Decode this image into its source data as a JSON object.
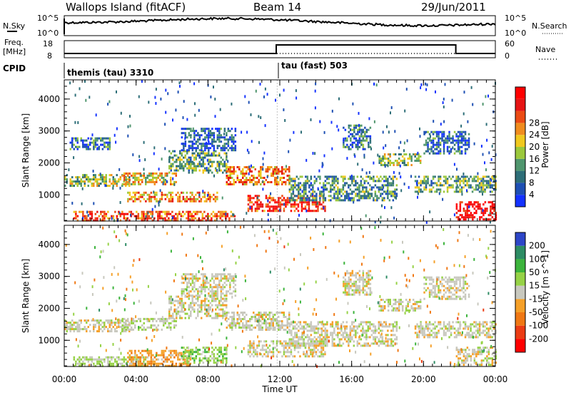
{
  "header": {
    "station": "Wallops Island (fitACF)",
    "beam": "Beam 14",
    "date": "29/Jun/2011"
  },
  "status_panels": {
    "nsky_label": "N.Sky",
    "nsky_ticks": [
      "10^5",
      "10^0"
    ],
    "nsearch_label": "N.Search",
    "nsearch_ticks": [
      "10^5",
      "10^0"
    ],
    "freq_label_line1": "Freq.",
    "freq_label_line2": "[MHz]",
    "freq_ticks": [
      "18",
      "8"
    ],
    "nave_label": "Nave",
    "nave_ticks": [
      "60",
      "0"
    ],
    "cpid_label": "CPID",
    "cpid_segments": [
      {
        "start_hour": 0,
        "end_hour": 11.8,
        "label": "themis (tau) 3310"
      },
      {
        "start_hour": 11.8,
        "end_hour": 24,
        "label": "tau (fast) 503"
      }
    ],
    "freq_values_mhz": [
      {
        "start_hour": 0,
        "end_hour": 11.8,
        "value": 10.5
      },
      {
        "start_hour": 11.8,
        "end_hour": 21.8,
        "value": 15.5
      },
      {
        "start_hour": 21.8,
        "end_hour": 24,
        "value": 10.5
      }
    ]
  },
  "chart_data": [
    {
      "type": "heatmap",
      "name": "power",
      "ylabel": "Slant Range [km]",
      "yticks": [
        "1000",
        "2000",
        "3000",
        "4000"
      ],
      "ylim": [
        180,
        4600
      ],
      "colorbar_label": "Power [dB]",
      "colorbar_ticks": [
        "4",
        "8",
        "12",
        "16",
        "20",
        "24",
        "28"
      ],
      "colorbar_colors": [
        "#1432ff",
        "#1e50b4",
        "#2d6e78",
        "#50966e",
        "#9bc83c",
        "#f0c81e",
        "#f08c1e",
        "#eb4b14",
        "#e61414",
        "#ff0000"
      ],
      "clim": [
        0,
        32
      ],
      "regions": [
        {
          "t0": 0.0,
          "t1": 3.6,
          "r0": 1250,
          "r1": 1650,
          "value": 14
        },
        {
          "t0": 3.2,
          "t1": 6.2,
          "r0": 1300,
          "r1": 1700,
          "value": 18
        },
        {
          "t0": 5.8,
          "t1": 9.0,
          "r0": 1700,
          "r1": 2400,
          "value": 12
        },
        {
          "t0": 9.0,
          "t1": 12.5,
          "r0": 1300,
          "r1": 1900,
          "value": 22
        },
        {
          "t0": 10.2,
          "t1": 14.5,
          "r0": 500,
          "r1": 1000,
          "value": 26
        },
        {
          "t0": 0.5,
          "t1": 9.5,
          "r0": 200,
          "r1": 500,
          "value": 24
        },
        {
          "t0": 3.5,
          "t1": 8.5,
          "r0": 800,
          "r1": 1100,
          "value": 20
        },
        {
          "t0": 12.5,
          "t1": 18.5,
          "r0": 800,
          "r1": 1600,
          "value": 10
        },
        {
          "t0": 17.5,
          "t1": 19.8,
          "r0": 1900,
          "r1": 2300,
          "value": 14
        },
        {
          "t0": 19.5,
          "t1": 24.0,
          "r0": 1100,
          "r1": 1600,
          "value": 12
        },
        {
          "t0": 21.8,
          "t1": 24.0,
          "r0": 200,
          "r1": 800,
          "value": 30
        },
        {
          "t0": 0.3,
          "t1": 2.5,
          "r0": 2400,
          "r1": 2800,
          "value": 8
        },
        {
          "t0": 15.5,
          "t1": 17.0,
          "r0": 2400,
          "r1": 3200,
          "value": 8
        },
        {
          "t0": 20.0,
          "t1": 22.5,
          "r0": 2300,
          "r1": 3000,
          "value": 7
        },
        {
          "t0": 6.5,
          "t1": 9.5,
          "r0": 2400,
          "r1": 3100,
          "value": 6
        }
      ]
    },
    {
      "type": "heatmap",
      "name": "velocity",
      "ylabel": "Slant Range [km]",
      "yticks": [
        "1000",
        "2000",
        "3000",
        "4000"
      ],
      "ylim": [
        180,
        4600
      ],
      "colorbar_label": "Velocity [m s^-1]",
      "colorbar_ticks": [
        "200",
        "100",
        "50",
        "15",
        "-15",
        "-50",
        "-100",
        "-200"
      ],
      "colorbar_colors": [
        "#2d46c8",
        "#2d8c64",
        "#3cb43c",
        "#96d246",
        "#c8c8be",
        "#f5a028",
        "#f07814",
        "#eb3c14",
        "#ff0000"
      ],
      "clim": [
        -250,
        250
      ],
      "regions": [
        {
          "t0": 0.0,
          "t1": 3.6,
          "r0": 1250,
          "r1": 1650,
          "value": 0
        },
        {
          "t0": 3.2,
          "t1": 6.2,
          "r0": 1300,
          "r1": 1700,
          "value": 20
        },
        {
          "t0": 5.8,
          "t1": 9.0,
          "r0": 1700,
          "r1": 2400,
          "value": 0
        },
        {
          "t0": 9.0,
          "t1": 12.5,
          "r0": 1300,
          "r1": 1900,
          "value": 0
        },
        {
          "t0": 10.2,
          "t1": 14.5,
          "r0": 500,
          "r1": 1000,
          "value": 0
        },
        {
          "t0": 0.5,
          "t1": 4.5,
          "r0": 200,
          "r1": 500,
          "value": 30
        },
        {
          "t0": 3.5,
          "t1": 7.0,
          "r0": 200,
          "r1": 700,
          "value": -60
        },
        {
          "t0": 6.5,
          "t1": 9.0,
          "r0": 300,
          "r1": 800,
          "value": 60
        },
        {
          "t0": 12.5,
          "t1": 18.5,
          "r0": 800,
          "r1": 1600,
          "value": 0
        },
        {
          "t0": 17.5,
          "t1": 19.8,
          "r0": 1900,
          "r1": 2300,
          "value": 0
        },
        {
          "t0": 19.5,
          "t1": 24.0,
          "r0": 1100,
          "r1": 1600,
          "value": 0
        },
        {
          "t0": 21.8,
          "t1": 24.0,
          "r0": 200,
          "r1": 800,
          "value": 0
        },
        {
          "t0": 15.5,
          "t1": 17.0,
          "r0": 2400,
          "r1": 3200,
          "value": 0
        },
        {
          "t0": 20.0,
          "t1": 22.5,
          "r0": 2300,
          "r1": 3000,
          "value": 0
        },
        {
          "t0": 6.5,
          "t1": 9.5,
          "r0": 2400,
          "r1": 3100,
          "value": 0
        }
      ]
    }
  ],
  "x_axis": {
    "label": "Time UT",
    "ticks": [
      "00:00",
      "04:00",
      "08:00",
      "12:00",
      "16:00",
      "20:00",
      "00:00"
    ],
    "xlim_hours": [
      0,
      24
    ]
  }
}
